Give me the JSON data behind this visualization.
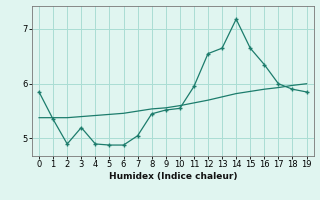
{
  "x": [
    0,
    1,
    2,
    3,
    4,
    5,
    6,
    7,
    8,
    9,
    10,
    11,
    12,
    13,
    14,
    15,
    16,
    17,
    18,
    19
  ],
  "y_curve": [
    5.85,
    5.35,
    4.9,
    5.2,
    4.9,
    4.88,
    4.88,
    5.05,
    5.45,
    5.52,
    5.55,
    5.95,
    6.55,
    6.65,
    7.18,
    6.65,
    6.35,
    6.0,
    5.9,
    5.85
  ],
  "y_line": [
    5.38,
    5.38,
    5.38,
    5.4,
    5.42,
    5.44,
    5.46,
    5.5,
    5.54,
    5.56,
    5.6,
    5.65,
    5.7,
    5.76,
    5.82,
    5.86,
    5.9,
    5.93,
    5.97,
    6.0
  ],
  "color": "#1c7c6c",
  "bg_color": "#e0f5f0",
  "grid_color": "#aaddd4",
  "xlabel": "Humidex (Indice chaleur)",
  "ylim": [
    4.68,
    7.42
  ],
  "xlim": [
    -0.5,
    19.5
  ],
  "yticks": [
    5,
    6,
    7
  ],
  "xticks": [
    0,
    1,
    2,
    3,
    4,
    5,
    6,
    7,
    8,
    9,
    10,
    11,
    12,
    13,
    14,
    15,
    16,
    17,
    18,
    19
  ]
}
